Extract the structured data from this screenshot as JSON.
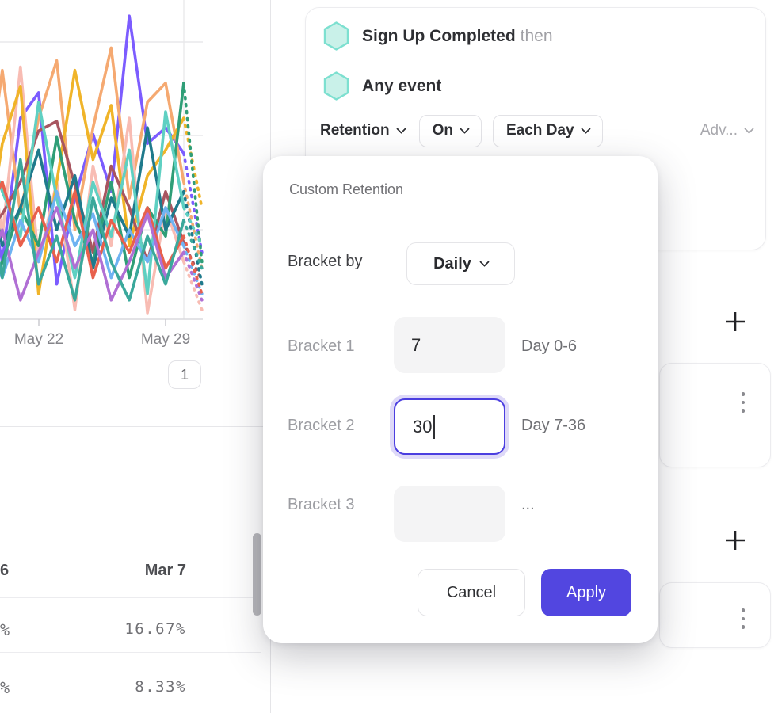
{
  "chart_data": {
    "type": "line",
    "title": "",
    "xlabel": "",
    "ylabel": "",
    "ylim": [
      0,
      100
    ],
    "grid": true,
    "legend": "none",
    "x_axis_ticks": [
      {
        "label": "May 22",
        "index": 3
      },
      {
        "label": "May 29",
        "index": 10
      }
    ],
    "note_incomplete_data_dashed_after_index": 11,
    "series": [
      {
        "color": "#7c5cff",
        "values": [
          48,
          18,
          63,
          71,
          11,
          38,
          58,
          40,
          95,
          55,
          60,
          52,
          21
        ]
      },
      {
        "color": "#f5a971",
        "values": [
          35,
          78,
          33,
          63,
          81,
          28,
          60,
          85,
          38,
          68,
          74,
          43,
          16
        ]
      },
      {
        "color": "#f8bcb3",
        "values": [
          70,
          26,
          79,
          18,
          43,
          3,
          48,
          23,
          63,
          2,
          35,
          18,
          3
        ]
      },
      {
        "color": "#f0b429",
        "values": [
          18,
          55,
          73,
          8,
          43,
          78,
          50,
          67,
          23,
          45,
          53,
          63,
          35
        ]
      },
      {
        "color": "#a85560",
        "values": [
          26,
          33,
          43,
          59,
          62,
          42,
          21,
          48,
          35,
          18,
          40,
          24,
          12
        ]
      },
      {
        "color": "#2f9e77",
        "values": [
          3,
          18,
          35,
          23,
          57,
          31,
          18,
          43,
          13,
          35,
          26,
          74,
          18
        ]
      },
      {
        "color": "#1f7a8c",
        "values": [
          50,
          23,
          35,
          53,
          28,
          45,
          16,
          38,
          26,
          60,
          28,
          40,
          11
        ]
      },
      {
        "color": "#5fd0c2",
        "values": [
          58,
          40,
          26,
          68,
          38,
          13,
          43,
          26,
          53,
          8,
          65,
          35,
          23
        ]
      },
      {
        "color": "#6fb3f2",
        "values": [
          23,
          13,
          31,
          18,
          40,
          23,
          33,
          13,
          28,
          18,
          35,
          23,
          8
        ]
      },
      {
        "color": "#e8604c",
        "values": [
          31,
          43,
          23,
          35,
          18,
          40,
          13,
          31,
          21,
          35,
          16,
          26,
          8
        ]
      },
      {
        "color": "#b06fd4",
        "values": [
          13,
          28,
          6,
          21,
          35,
          16,
          28,
          6,
          18,
          33,
          13,
          21,
          6
        ]
      },
      {
        "color": "#3aa89b",
        "values": [
          40,
          13,
          50,
          11,
          26,
          6,
          38,
          18,
          6,
          26,
          11,
          31,
          16
        ]
      }
    ]
  },
  "left_pane": {
    "pagination": {
      "page": "1"
    },
    "results_table": {
      "header_partial_left": "6",
      "header": "Mar 7",
      "rows": [
        {
          "partial_left": "%",
          "value": "16.67%"
        },
        {
          "partial_left": "%",
          "value": "8.33%"
        }
      ]
    }
  },
  "query_card": {
    "event1": "Sign Up Completed",
    "then_label": "then",
    "event2": "Any event",
    "event_icon": "hexagon-event-icon",
    "event_icon_fill": "#c9f1e9",
    "event_icon_stroke": "#7de0d0",
    "controls": {
      "measure": "Retention",
      "on": "On",
      "interval": "Each Day",
      "advanced": "Adv..."
    }
  },
  "right_pane": {
    "sections": [
      {
        "add_icon": "plus-icon",
        "card_menu_icon": "kebab-icon"
      },
      {
        "add_icon": "plus-icon",
        "card_menu_icon": "kebab-icon"
      }
    ]
  },
  "modal": {
    "title": "Custom Retention",
    "bracket_by_label": "Bracket by",
    "bracket_by_value": "Daily",
    "brackets": [
      {
        "label": "Bracket 1",
        "value": "7",
        "range": "Day 0-6",
        "state": "filled"
      },
      {
        "label": "Bracket 2",
        "value": "30",
        "range": "Day 7-36",
        "state": "focused"
      },
      {
        "label": "Bracket 3",
        "value": "",
        "range": "...",
        "state": "empty"
      }
    ],
    "cancel_label": "Cancel",
    "apply_label": "Apply",
    "accent_color": "#5246e0"
  }
}
